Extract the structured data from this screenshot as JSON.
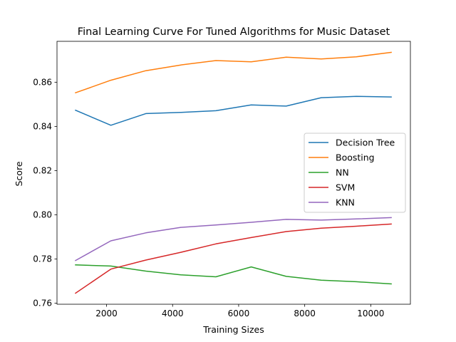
{
  "chart_data": {
    "type": "line",
    "title": "Final Learning Curve For Tuned Algorithms for Music Dataset",
    "xlabel": "Training Sizes",
    "ylabel": "Score",
    "xlim": [
      500,
      11200
    ],
    "ylim": [
      0.7595,
      0.8785
    ],
    "xticks": [
      2000,
      4000,
      6000,
      8000,
      10000
    ],
    "yticks": [
      0.76,
      0.78,
      0.8,
      0.82,
      0.84,
      0.86
    ],
    "x": [
      1060,
      2130,
      3190,
      4250,
      5310,
      6380,
      7440,
      8500,
      9560,
      10620
    ],
    "series": [
      {
        "name": "Decision Tree",
        "color": "#1f77b4",
        "values": [
          0.8473,
          0.8405,
          0.8458,
          0.8463,
          0.8471,
          0.8497,
          0.8492,
          0.853,
          0.8536,
          0.8533
        ]
      },
      {
        "name": "Boosting",
        "color": "#ff7f0e",
        "values": [
          0.8552,
          0.8609,
          0.8652,
          0.8678,
          0.8698,
          0.8692,
          0.8713,
          0.8705,
          0.8715,
          0.8735
        ]
      },
      {
        "name": "NN",
        "color": "#2ca02c",
        "values": [
          0.7773,
          0.7768,
          0.7745,
          0.7728,
          0.7719,
          0.7764,
          0.7721,
          0.7704,
          0.7697,
          0.7687
        ]
      },
      {
        "name": "SVM",
        "color": "#d62728",
        "values": [
          0.7645,
          0.7754,
          0.7795,
          0.783,
          0.7868,
          0.7897,
          0.7924,
          0.7939,
          0.7948,
          0.7958
        ]
      },
      {
        "name": "KNN",
        "color": "#9467bd",
        "values": [
          0.7793,
          0.7882,
          0.7918,
          0.7943,
          0.7954,
          0.7966,
          0.7979,
          0.7976,
          0.7981,
          0.7987
        ]
      }
    ],
    "legend_position": "center-right",
    "grid": false
  }
}
